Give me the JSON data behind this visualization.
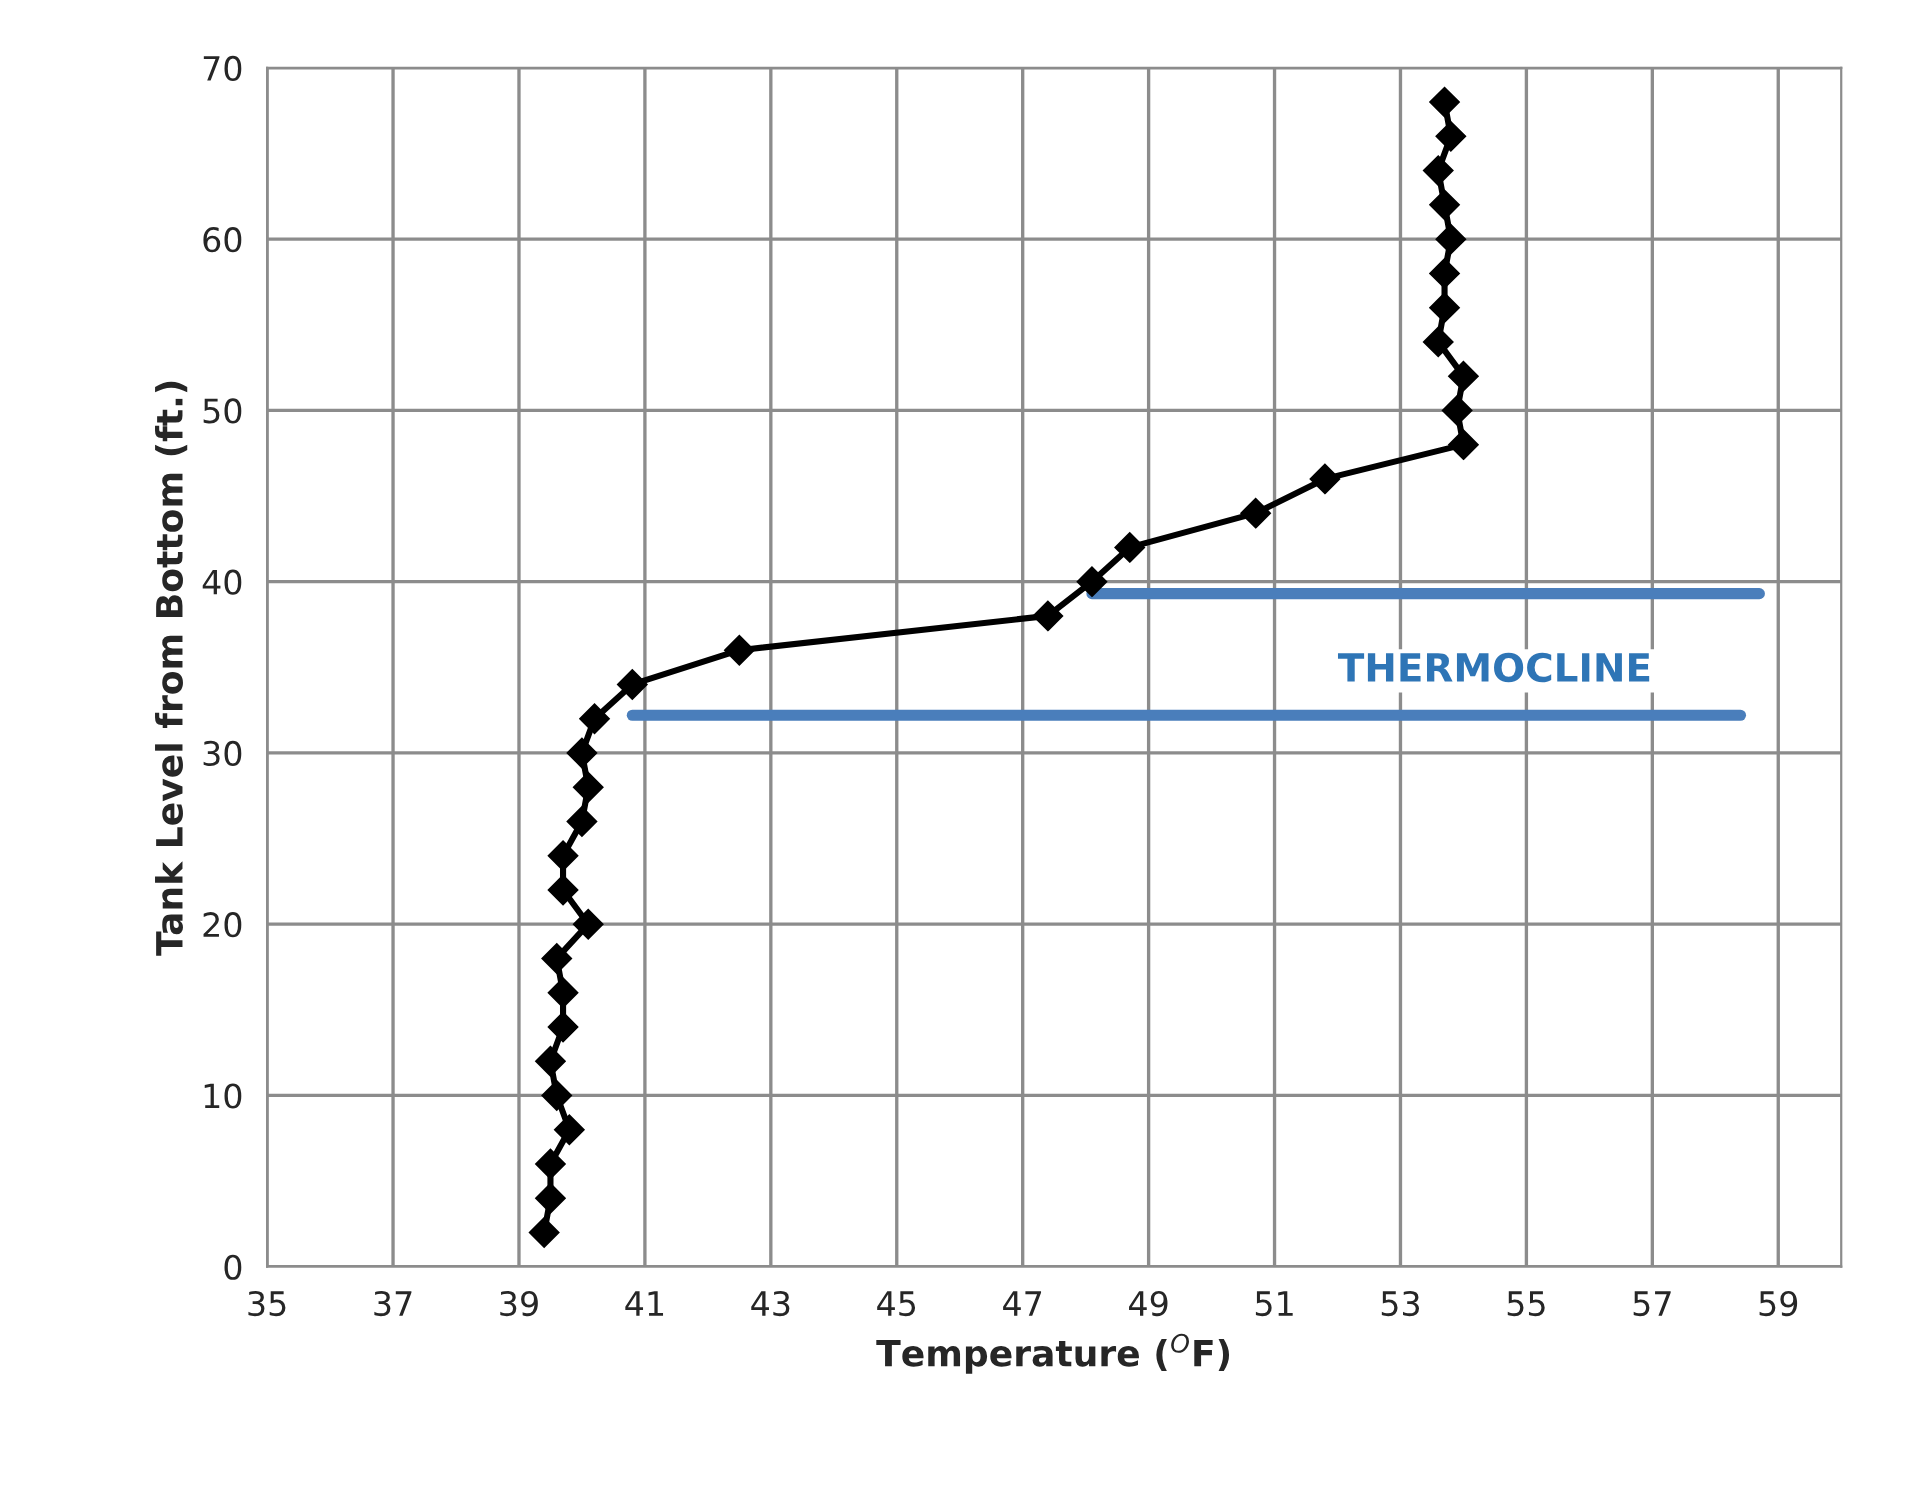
{
  "chart_data": {
    "type": "line",
    "xlabel": "Temperature ($^{O}$F)",
    "ylabel": "Tank Level from Bottom (ft.)",
    "xlim": [
      35,
      60
    ],
    "xticks": [
      35,
      37,
      39,
      41,
      43,
      45,
      47,
      49,
      51,
      53,
      55,
      57,
      59
    ],
    "ylim": [
      0,
      70
    ],
    "yticks": [
      0,
      10,
      20,
      30,
      40,
      50,
      60,
      70
    ],
    "grid": true,
    "marker": "diamond",
    "line_style": "solid",
    "series": [
      {
        "color": "#000000",
        "x": [
          39.4,
          39.5,
          39.5,
          39.8,
          39.6,
          39.5,
          39.7,
          39.7,
          39.6,
          40.1,
          39.7,
          39.7,
          40.0,
          40.1,
          40.0,
          40.2,
          40.8,
          42.5,
          47.4,
          48.1,
          48.7,
          50.7,
          51.8,
          54.0,
          53.9,
          54.0,
          53.6,
          53.7,
          53.7,
          53.8,
          53.7,
          53.6,
          53.8,
          53.7
        ],
        "values": [
          2,
          4,
          6,
          8,
          10,
          12,
          14,
          16,
          18,
          20,
          22,
          24,
          26,
          28,
          30,
          32,
          34,
          36,
          38,
          40,
          42,
          44,
          46,
          48,
          50,
          52,
          54,
          56,
          58,
          60,
          62,
          64,
          66,
          68
        ]
      },
      {
        "color": "#4a7ebb",
        "marker": "none",
        "x": [
          40.8,
          58.4
        ],
        "values": [
          32.2,
          32.2
        ]
      },
      {
        "color": "#4a7ebb",
        "marker": "none",
        "x": [
          48.1,
          58.7
        ],
        "values": [
          39.3,
          39.3
        ]
      }
    ],
    "annotations": [
      "THERMOCLINE"
    ]
  }
}
